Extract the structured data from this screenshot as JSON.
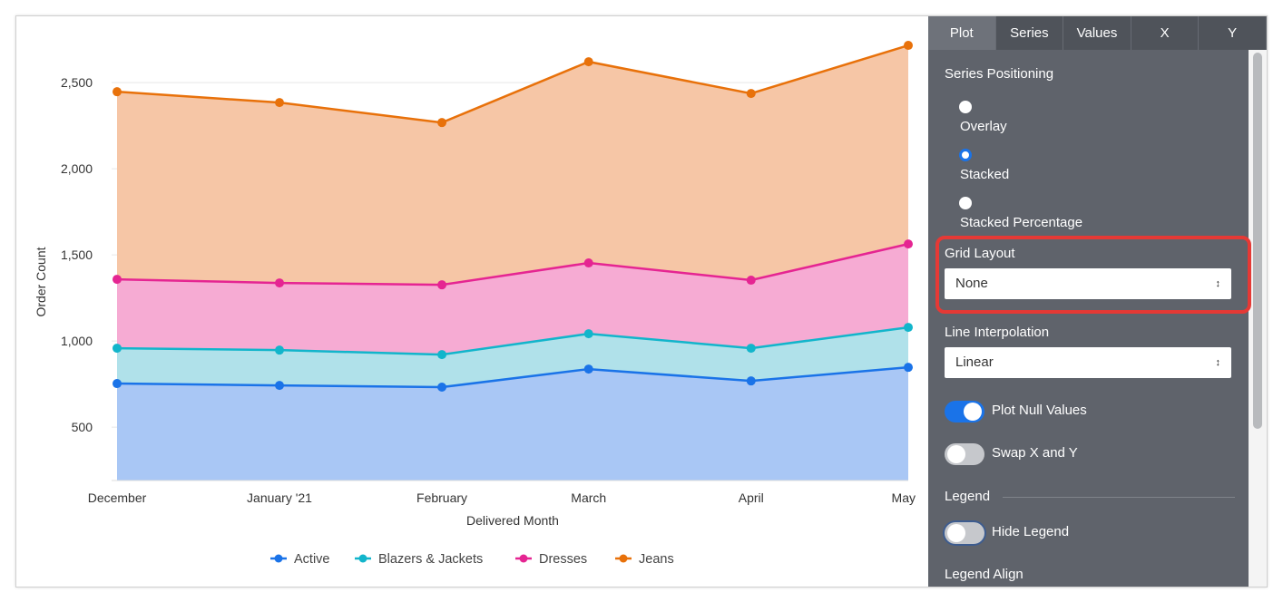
{
  "chart_data": {
    "type": "area",
    "stacked": true,
    "xlabel": "Delivered Month",
    "ylabel": "Order Count",
    "categories": [
      "December",
      "January '21",
      "February",
      "March",
      "April",
      "May"
    ],
    "dates": [
      "2020-12-01",
      "2021-01-01",
      "2021-02-01",
      "2021-03-01",
      "2021-04-01",
      "2021-05-01"
    ],
    "yticks": [
      500,
      1000,
      1500,
      2000,
      2500
    ],
    "ytick_labels": [
      "500",
      "1,000",
      "1,500",
      "2,000",
      "2,500"
    ],
    "ylim": [
      190,
      2820
    ],
    "grid": true,
    "legend_position": "bottom",
    "series": [
      {
        "name": "Active",
        "color": "#1a73e8",
        "fill": "#a9c7f5",
        "values": [
          753,
          742,
          732,
          837,
          768,
          847
        ]
      },
      {
        "name": "Blazers & Jackets",
        "color": "#12b5cb",
        "fill": "#b0e1ea",
        "values": [
          205,
          205,
          189,
          205,
          190,
          232
        ]
      },
      {
        "name": "Dresses",
        "color": "#e52592",
        "fill": "#f6abd3",
        "values": [
          400,
          390,
          405,
          411,
          395,
          484
        ]
      },
      {
        "name": "Jeans",
        "color": "#e8710a",
        "fill": "#f6c6a6",
        "values": [
          1089,
          1047,
          942,
          1168,
          1084,
          1153
        ]
      }
    ]
  },
  "panel": {
    "tabs": [
      "Plot",
      "Series",
      "Values",
      "X",
      "Y"
    ],
    "active_tab": "Plot",
    "series_positioning": {
      "label": "Series Positioning",
      "options": [
        "Overlay",
        "Stacked",
        "Stacked Percentage"
      ],
      "selected": "Stacked"
    },
    "grid_layout": {
      "label": "Grid Layout",
      "value": "None"
    },
    "line_interpolation": {
      "label": "Line Interpolation",
      "value": "Linear"
    },
    "plot_null_values": {
      "label": "Plot Null Values",
      "on": true
    },
    "swap_xy": {
      "label": "Swap X and Y",
      "on": false
    },
    "legend_section": "Legend",
    "hide_legend": {
      "label": "Hide Legend",
      "on": false
    },
    "legend_align": {
      "label": "Legend Align"
    },
    "highlight_color": "#e53935"
  }
}
